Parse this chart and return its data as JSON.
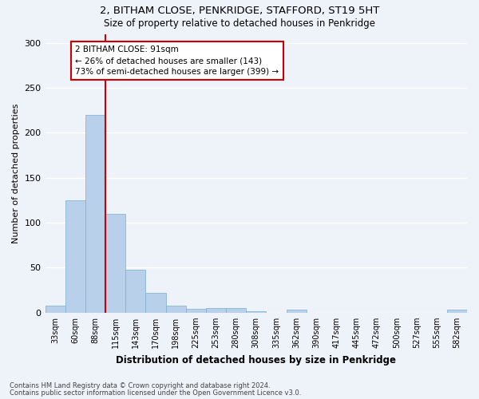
{
  "title1": "2, BITHAM CLOSE, PENKRIDGE, STAFFORD, ST19 5HT",
  "title2": "Size of property relative to detached houses in Penkridge",
  "xlabel": "Distribution of detached houses by size in Penkridge",
  "ylabel": "Number of detached properties",
  "categories": [
    "33sqm",
    "60sqm",
    "88sqm",
    "115sqm",
    "143sqm",
    "170sqm",
    "198sqm",
    "225sqm",
    "253sqm",
    "280sqm",
    "308sqm",
    "335sqm",
    "362sqm",
    "390sqm",
    "417sqm",
    "445sqm",
    "472sqm",
    "500sqm",
    "527sqm",
    "555sqm",
    "582sqm"
  ],
  "values": [
    8,
    125,
    220,
    110,
    48,
    22,
    8,
    4,
    5,
    5,
    2,
    0,
    3,
    0,
    0,
    0,
    0,
    0,
    0,
    0,
    3
  ],
  "bar_color": "#b8d0ea",
  "bar_edgecolor": "#7aafd4",
  "background_color": "#eef2f9",
  "grid_color": "#ffffff",
  "annotation_text": "2 BITHAM CLOSE: 91sqm\n← 26% of detached houses are smaller (143)\n73% of semi-detached houses are larger (399) →",
  "annotation_box_color": "#ffffff",
  "annotation_box_edgecolor": "#cc0000",
  "vline_x_idx": 2,
  "vline_color": "#cc0000",
  "ylim": [
    0,
    310
  ],
  "yticks": [
    0,
    50,
    100,
    150,
    200,
    250,
    300
  ],
  "footer1": "Contains HM Land Registry data © Crown copyright and database right 2024.",
  "footer2": "Contains public sector information licensed under the Open Government Licence v3.0."
}
